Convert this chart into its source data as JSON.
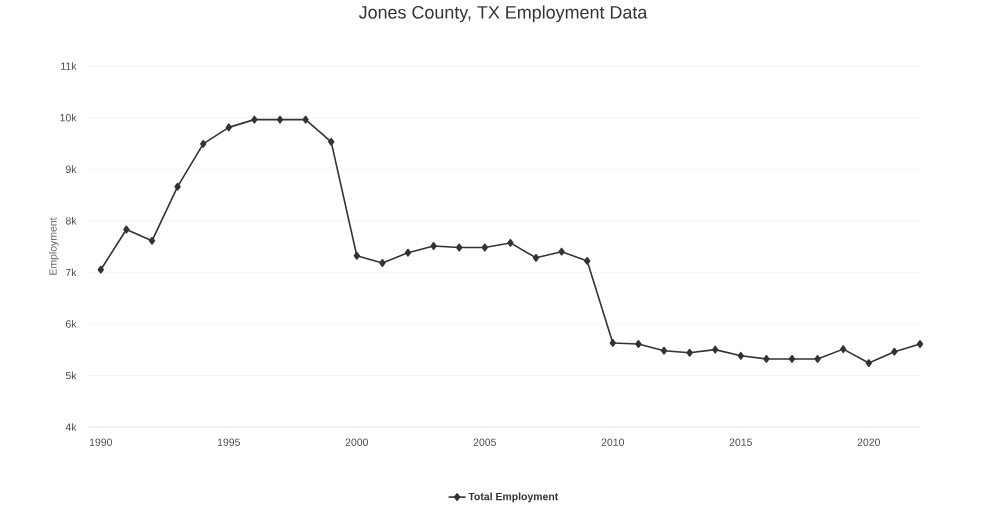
{
  "chart_data": {
    "type": "line",
    "title": "Jones County, TX Employment Data",
    "ylabel": "Employment",
    "x": [
      1990,
      1991,
      1992,
      1993,
      1994,
      1995,
      1996,
      1997,
      1998,
      1999,
      2000,
      2001,
      2002,
      2003,
      2004,
      2005,
      2006,
      2007,
      2008,
      2009,
      2010,
      2011,
      2012,
      2013,
      2014,
      2015,
      2016,
      2017,
      2018,
      2019,
      2020,
      2021,
      2022
    ],
    "series": [
      {
        "name": "Total Employment",
        "color": "#333333",
        "values": [
          7050,
          7830,
          7610,
          8660,
          9490,
          9810,
          9960,
          9960,
          9960,
          9530,
          7320,
          7180,
          7380,
          7510,
          7480,
          7480,
          7570,
          7280,
          7400,
          7220,
          5630,
          5610,
          5480,
          5440,
          5500,
          5380,
          5320,
          5320,
          5320,
          5510,
          5240,
          5460,
          5610
        ]
      }
    ],
    "xlim": [
      1989.5,
      2022
    ],
    "ylim": [
      4000,
      11000
    ],
    "xticks": [
      1990,
      1995,
      2000,
      2005,
      2010,
      2015,
      2020
    ],
    "yticks": [
      {
        "value": 4000,
        "label": "4k"
      },
      {
        "value": 5000,
        "label": "5k"
      },
      {
        "value": 6000,
        "label": "6k"
      },
      {
        "value": 7000,
        "label": "7k"
      },
      {
        "value": 8000,
        "label": "8k"
      },
      {
        "value": 9000,
        "label": "9k"
      },
      {
        "value": 10000,
        "label": "10k"
      },
      {
        "value": 11000,
        "label": "11k"
      }
    ],
    "grid": "y",
    "legend": "bottom",
    "marker": "diamond",
    "line_style": "solid"
  }
}
